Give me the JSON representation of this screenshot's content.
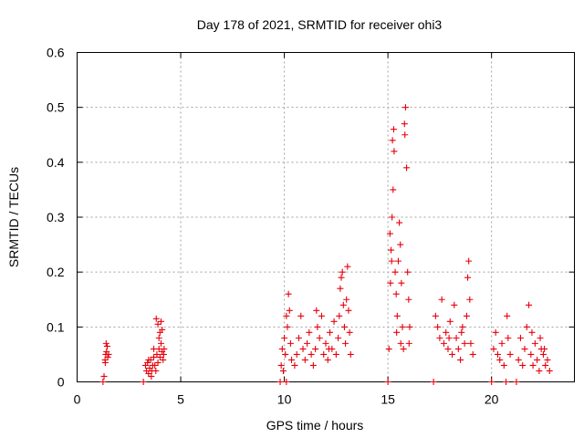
{
  "chart_data": {
    "type": "scatter",
    "title": "Day 178 of 2021, SRMTID for receiver ohi3",
    "xlabel": "GPS time / hours",
    "ylabel": "SRMTID / TECUs",
    "xlim": [
      0,
      24
    ],
    "ylim": [
      0,
      0.6
    ],
    "xticks": [
      0,
      5,
      10,
      15,
      20
    ],
    "xtick_labels": [
      "0",
      "5",
      "10",
      "15",
      "20"
    ],
    "yticks": [
      0,
      0.1,
      0.2,
      0.3,
      0.4,
      0.5,
      0.6
    ],
    "ytick_labels": [
      "0",
      "0.1",
      "0.2",
      "0.3",
      "0.4",
      "0.5",
      "0.6"
    ],
    "grid": true,
    "marker": "plus",
    "color": "#e8000b",
    "series": [
      {
        "name": "SRMTID",
        "points": [
          [
            1.25,
            0.0
          ],
          [
            1.3,
            0.01
          ],
          [
            1.35,
            0.04
          ],
          [
            1.38,
            0.05
          ],
          [
            1.42,
            0.055
          ],
          [
            1.45,
            0.065
          ],
          [
            1.48,
            0.045
          ],
          [
            1.52,
            0.05
          ],
          [
            1.4,
            0.07
          ],
          [
            1.36,
            0.035
          ],
          [
            3.2,
            0.0
          ],
          [
            3.3,
            0.03
          ],
          [
            3.35,
            0.02
          ],
          [
            3.4,
            0.035
          ],
          [
            3.45,
            0.015
          ],
          [
            3.5,
            0.025
          ],
          [
            3.55,
            0.04
          ],
          [
            3.6,
            0.02
          ],
          [
            3.65,
            0.03
          ],
          [
            3.7,
            0.045
          ],
          [
            3.75,
            0.03
          ],
          [
            3.8,
            0.02
          ],
          [
            3.85,
            0.05
          ],
          [
            3.9,
            0.035
          ],
          [
            3.95,
            0.06
          ],
          [
            4.0,
            0.045
          ],
          [
            4.05,
            0.07
          ],
          [
            4.1,
            0.055
          ],
          [
            4.15,
            0.04
          ],
          [
            4.2,
            0.06
          ],
          [
            3.82,
            0.115
          ],
          [
            3.9,
            0.105
          ],
          [
            4.05,
            0.11
          ],
          [
            4.1,
            0.095
          ],
          [
            3.95,
            0.08
          ],
          [
            4.0,
            0.09
          ],
          [
            3.7,
            0.06
          ],
          [
            4.18,
            0.05
          ],
          [
            3.45,
            0.04
          ],
          [
            3.58,
            0.01
          ],
          [
            9.8,
            0.0
          ],
          [
            9.85,
            0.03
          ],
          [
            9.9,
            0.06
          ],
          [
            9.95,
            0.02
          ],
          [
            10.0,
            0.08
          ],
          [
            10.05,
            0.05
          ],
          [
            10.1,
            0.12
          ],
          [
            10.15,
            0.1
          ],
          [
            10.2,
            0.16
          ],
          [
            10.25,
            0.13
          ],
          [
            10.3,
            0.07
          ],
          [
            10.35,
            0.04
          ],
          [
            10.1,
            0.0
          ],
          [
            10.5,
            0.03
          ],
          [
            10.6,
            0.05
          ],
          [
            10.7,
            0.08
          ],
          [
            10.8,
            0.12
          ],
          [
            10.9,
            0.06
          ],
          [
            11.0,
            0.04
          ],
          [
            11.1,
            0.07
          ],
          [
            11.2,
            0.09
          ],
          [
            11.3,
            0.05
          ],
          [
            11.4,
            0.03
          ],
          [
            11.5,
            0.06
          ],
          [
            11.6,
            0.1
          ],
          [
            11.7,
            0.08
          ],
          [
            11.8,
            0.12
          ],
          [
            11.9,
            0.05
          ],
          [
            12.0,
            0.07
          ],
          [
            12.1,
            0.04
          ],
          [
            12.2,
            0.09
          ],
          [
            12.3,
            0.06
          ],
          [
            12.4,
            0.11
          ],
          [
            12.5,
            0.05
          ],
          [
            12.6,
            0.08
          ],
          [
            12.7,
            0.17
          ],
          [
            12.8,
            0.2
          ],
          [
            12.85,
            0.14
          ],
          [
            12.9,
            0.1
          ],
          [
            12.95,
            0.07
          ],
          [
            13.0,
            0.15
          ],
          [
            13.05,
            0.21
          ],
          [
            13.1,
            0.13
          ],
          [
            13.15,
            0.09
          ],
          [
            13.2,
            0.05
          ],
          [
            12.75,
            0.19
          ],
          [
            12.65,
            0.12
          ],
          [
            11.55,
            0.13
          ],
          [
            12.15,
            0.06
          ],
          [
            15.0,
            0.0
          ],
          [
            15.05,
            0.06
          ],
          [
            15.1,
            0.27
          ],
          [
            15.15,
            0.24
          ],
          [
            15.2,
            0.3
          ],
          [
            15.25,
            0.35
          ],
          [
            15.3,
            0.42
          ],
          [
            15.28,
            0.46
          ],
          [
            15.22,
            0.44
          ],
          [
            15.35,
            0.2
          ],
          [
            15.4,
            0.16
          ],
          [
            15.45,
            0.12
          ],
          [
            15.5,
            0.22
          ],
          [
            15.55,
            0.29
          ],
          [
            15.6,
            0.25
          ],
          [
            15.65,
            0.18
          ],
          [
            15.7,
            0.1
          ],
          [
            15.75,
            0.06
          ],
          [
            15.8,
            0.47
          ],
          [
            15.85,
            0.5
          ],
          [
            15.82,
            0.45
          ],
          [
            15.9,
            0.39
          ],
          [
            15.95,
            0.2
          ],
          [
            16.0,
            0.15
          ],
          [
            16.05,
            0.1
          ],
          [
            15.12,
            0.18
          ],
          [
            15.18,
            0.22
          ],
          [
            15.42,
            0.09
          ],
          [
            15.62,
            0.07
          ],
          [
            16.02,
            0.07
          ],
          [
            17.2,
            0.0
          ],
          [
            17.3,
            0.12
          ],
          [
            17.4,
            0.1
          ],
          [
            17.5,
            0.08
          ],
          [
            17.6,
            0.15
          ],
          [
            17.7,
            0.07
          ],
          [
            17.8,
            0.09
          ],
          [
            17.9,
            0.06
          ],
          [
            18.0,
            0.11
          ],
          [
            18.1,
            0.05
          ],
          [
            18.2,
            0.14
          ],
          [
            18.3,
            0.08
          ],
          [
            18.4,
            0.06
          ],
          [
            18.5,
            0.04
          ],
          [
            18.6,
            0.1
          ],
          [
            18.7,
            0.07
          ],
          [
            18.8,
            0.12
          ],
          [
            18.85,
            0.19
          ],
          [
            18.9,
            0.22
          ],
          [
            18.95,
            0.15
          ],
          [
            19.0,
            0.07
          ],
          [
            19.1,
            0.05
          ],
          [
            18.55,
            0.09
          ],
          [
            17.95,
            0.08
          ],
          [
            20.0,
            0.0
          ],
          [
            20.1,
            0.06
          ],
          [
            20.2,
            0.09
          ],
          [
            20.3,
            0.05
          ],
          [
            20.4,
            0.04
          ],
          [
            20.5,
            0.07
          ],
          [
            20.6,
            0.03
          ],
          [
            20.7,
            0.0
          ],
          [
            20.75,
            0.12
          ],
          [
            20.8,
            0.08
          ],
          [
            20.9,
            0.05
          ],
          [
            21.2,
            0.0
          ],
          [
            21.3,
            0.04
          ],
          [
            21.4,
            0.08
          ],
          [
            21.5,
            0.03
          ],
          [
            21.6,
            0.06
          ],
          [
            21.7,
            0.1
          ],
          [
            21.8,
            0.14
          ],
          [
            21.9,
            0.05
          ],
          [
            22.0,
            0.03
          ],
          [
            22.1,
            0.07
          ],
          [
            22.2,
            0.04
          ],
          [
            22.3,
            0.02
          ],
          [
            22.4,
            0.06
          ],
          [
            22.5,
            0.05
          ],
          [
            22.6,
            0.03
          ],
          [
            22.7,
            0.04
          ],
          [
            22.8,
            0.02
          ],
          [
            21.95,
            0.09
          ],
          [
            22.35,
            0.08
          ],
          [
            22.55,
            0.06
          ]
        ]
      }
    ]
  }
}
